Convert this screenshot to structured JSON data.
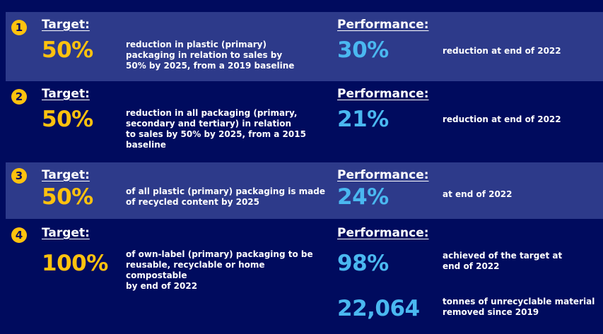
{
  "colors": {
    "background": "#000b5e",
    "band": "#2d3a8a",
    "target_accent": "#ffc20e",
    "performance_accent": "#4ab8f0",
    "text": "#ffffff"
  },
  "rows": [
    {
      "number": "1",
      "target_label": "Target:",
      "target_value": "50%",
      "target_description": "reduction in plastic (primary)\npackaging in relation to sales by\n50% by 2025, from a 2019 baseline",
      "performance_label": "Performance:",
      "performance_value": "30%",
      "performance_description": "reduction at end of 2022"
    },
    {
      "number": "2",
      "target_label": "Target:",
      "target_value": "50%",
      "target_description": "reduction in all packaging (primary,\nsecondary and tertiary) in relation\nto sales by 50% by 2025, from a 2015\nbaseline",
      "performance_label": "Performance:",
      "performance_value": "21%",
      "performance_description": "reduction at end of 2022"
    },
    {
      "number": "3",
      "target_label": "Target:",
      "target_value": "50%",
      "target_description": "of all plastic (primary) packaging is made\nof recycled content by 2025",
      "performance_label": "Performance:",
      "performance_value": "24%",
      "performance_description": "at end of 2022"
    },
    {
      "number": "4",
      "target_label": "Target:",
      "target_value": "100%",
      "target_description": "of own-label (primary) packaging to be\nreusable, recyclable or home compostable\nby end of 2022",
      "performance_label": "Performance:",
      "performance_value": "98%",
      "performance_description": "achieved of the target at\nend of 2022",
      "extra_value": "22,064",
      "extra_description": "tonnes of unrecyclable material\nremoved since 2019"
    }
  ]
}
